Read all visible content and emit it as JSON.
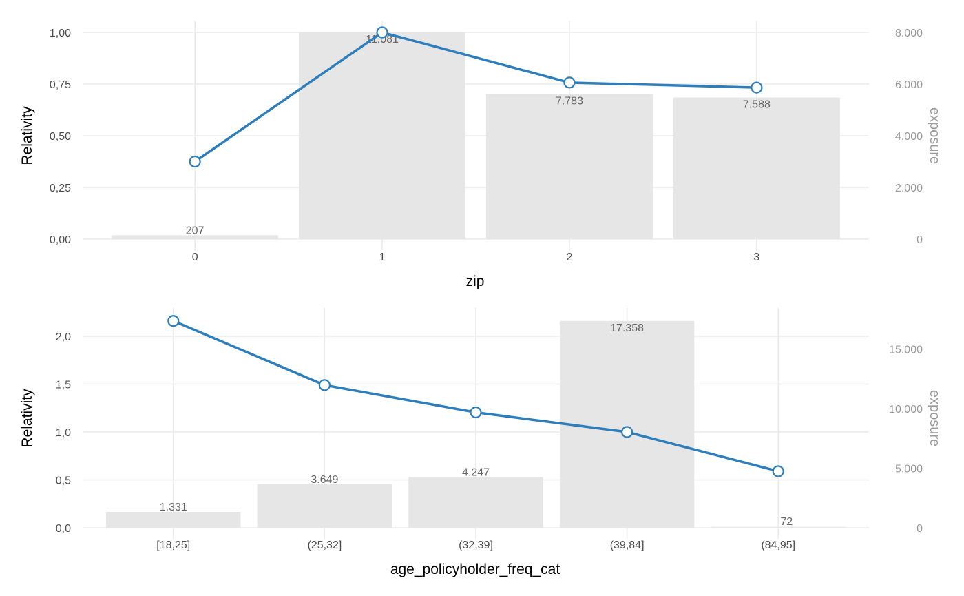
{
  "chart_data": [
    {
      "type": "bar+line",
      "xlabel": "zip",
      "ylabel": "Relativity",
      "y2label": "exposure",
      "categories": [
        "0",
        "1",
        "2",
        "3"
      ],
      "relativity": [
        0.375,
        1.0,
        0.757,
        0.733
      ],
      "exposure": [
        207,
        11081,
        7783,
        7588
      ],
      "exposure_labels": [
        "207",
        "11.081",
        "7.783",
        "7.588"
      ],
      "ylim": [
        0,
        1.0
      ],
      "yticks": [
        0,
        0.25,
        0.5,
        0.75,
        1.0
      ],
      "ytick_labels": [
        "0,00",
        "0,25",
        "0,50",
        "0,75",
        "1,00"
      ],
      "y2lim": [
        0,
        8000
      ],
      "y2ticks": [
        0,
        2000,
        4000,
        6000,
        8000
      ],
      "y2tick_labels": [
        "0",
        "2.000",
        "4.000",
        "6.000",
        "8.000"
      ],
      "bar_color": "#e6e6e6",
      "line_color": "#2e7ebc",
      "grid": true
    },
    {
      "type": "bar+line",
      "xlabel": "age_policyholder_freq_cat",
      "ylabel": "Relativity",
      "y2label": "exposure",
      "categories": [
        "[18,25]",
        "(25,32]",
        "(32,39]",
        "(39,84]",
        "(84,95]"
      ],
      "relativity": [
        2.16,
        1.49,
        1.205,
        1.0,
        0.59
      ],
      "exposure": [
        1331,
        3649,
        4247,
        17358,
        72
      ],
      "exposure_labels": [
        "1.331",
        "3.649",
        "4.247",
        "17.358",
        "72"
      ],
      "ylim": [
        0,
        2.16
      ],
      "yticks": [
        0,
        0.5,
        1.0,
        1.5,
        2.0
      ],
      "ytick_labels": [
        "0,0",
        "0,5",
        "1,0",
        "1,5",
        "2,0"
      ],
      "y2lim": [
        0,
        17358
      ],
      "y2ticks": [
        0,
        5000,
        10000,
        15000
      ],
      "y2tick_labels": [
        "0",
        "5.000",
        "10.000",
        "15.000"
      ],
      "bar_color": "#e6e6e6",
      "line_color": "#2e7ebc",
      "grid": true
    }
  ]
}
